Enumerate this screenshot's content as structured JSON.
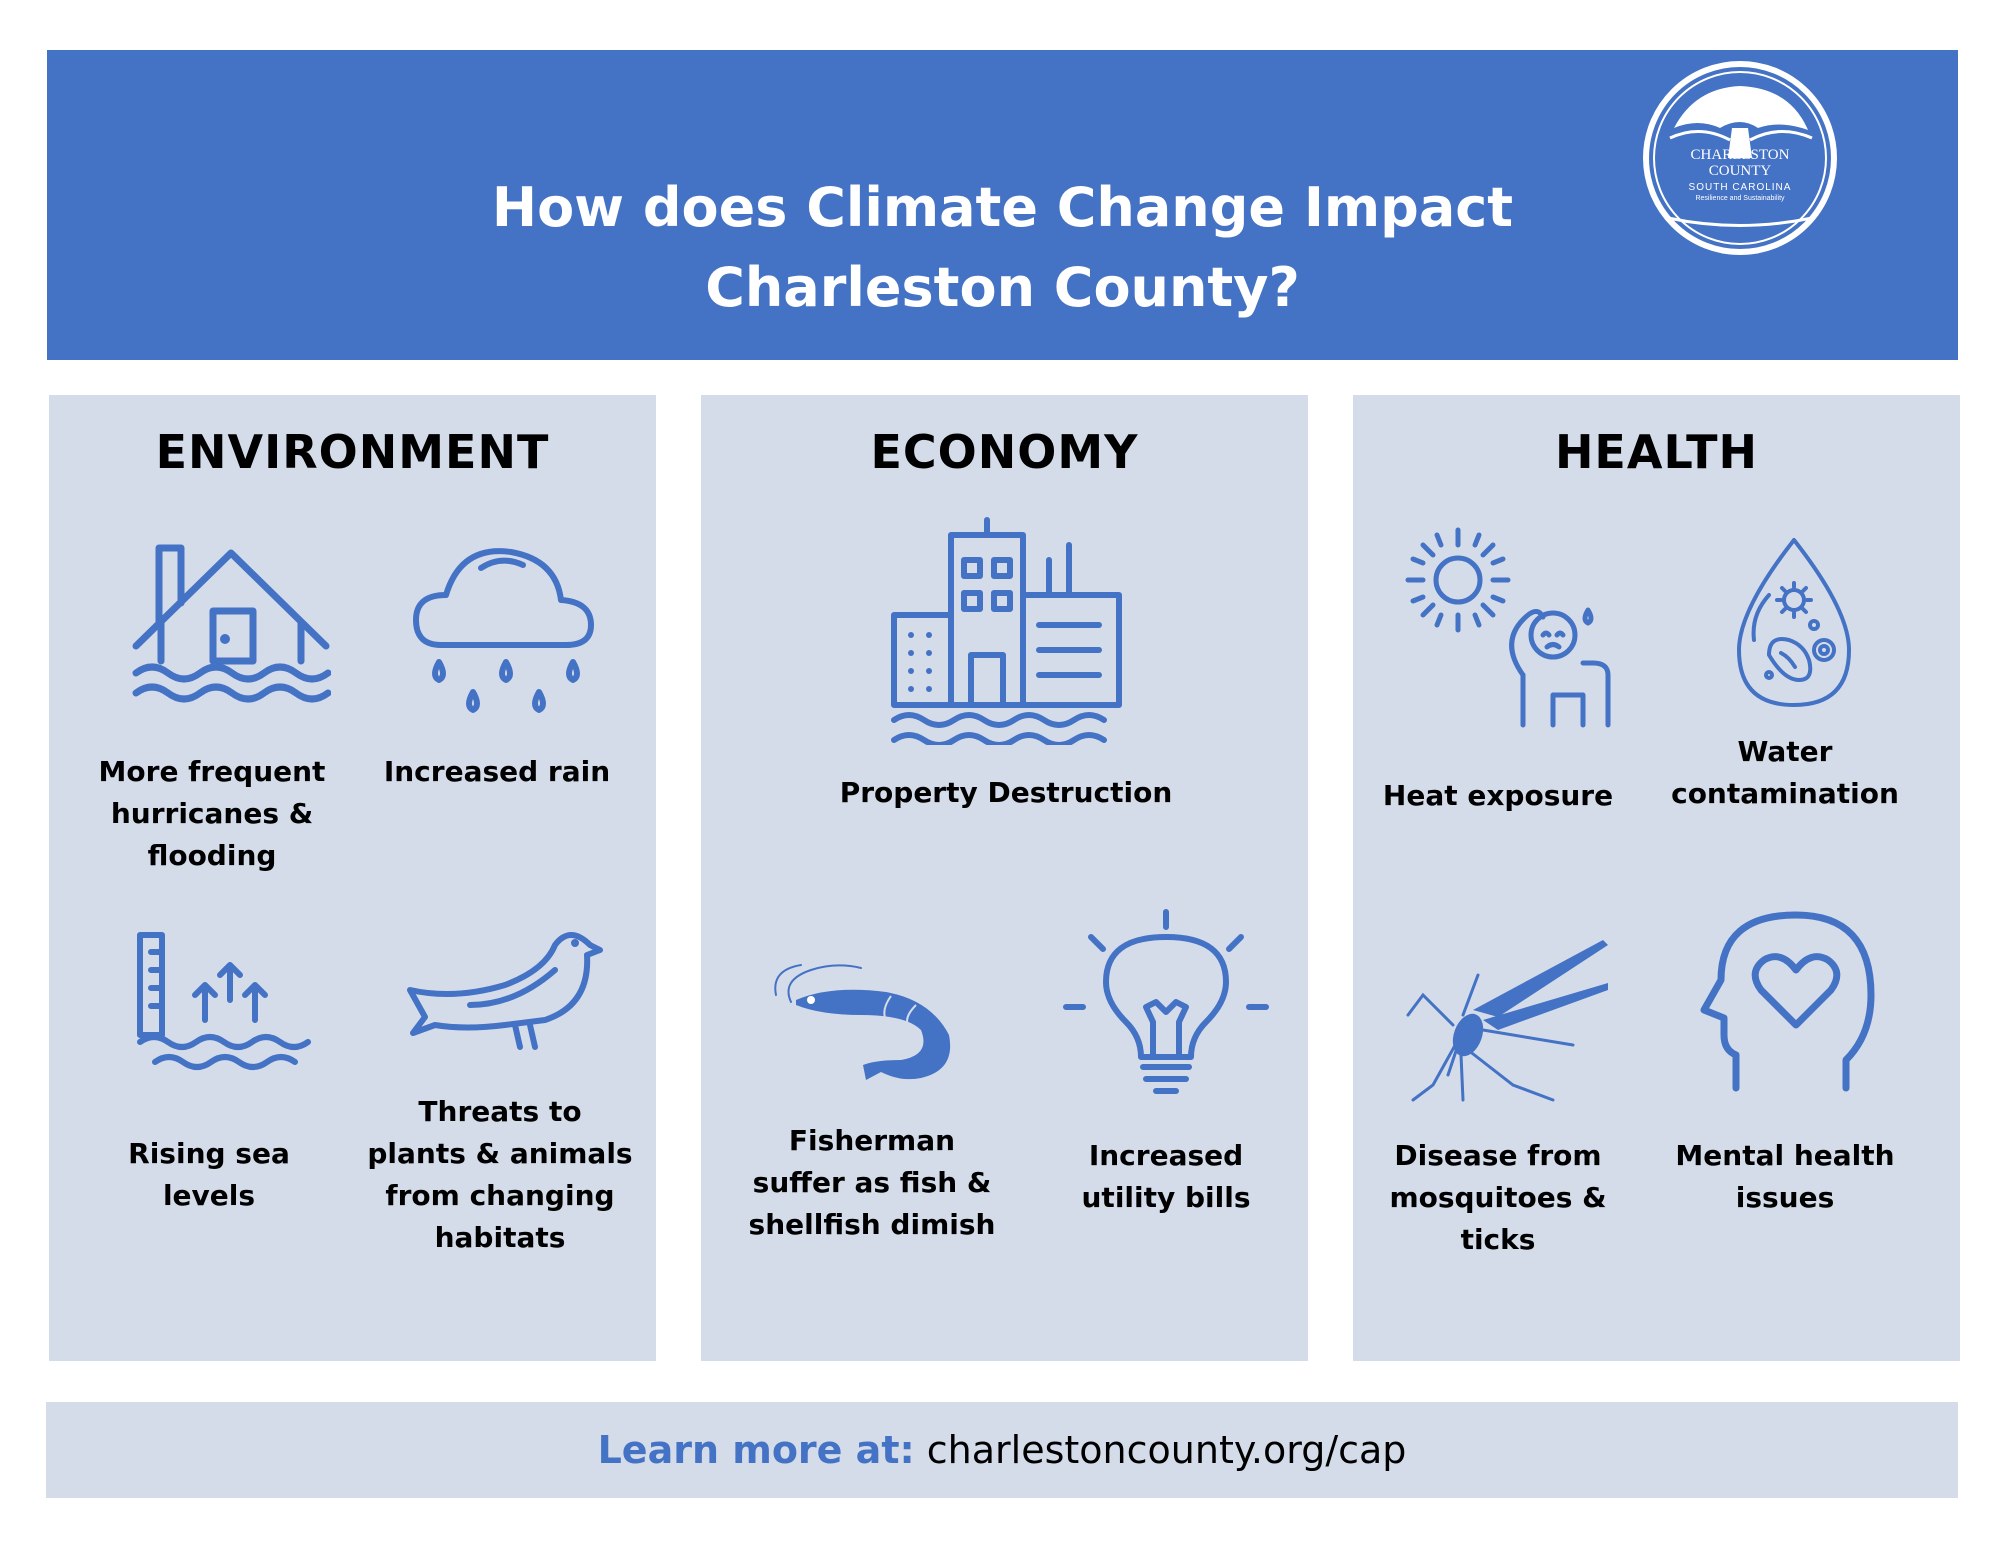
{
  "header": {
    "title_line1": "How does Climate Change Impact",
    "title_line2": "Charleston County?",
    "logo": {
      "line1": "CHARLESTON",
      "line2": "COUNTY",
      "line3": "SOUTH CAROLINA",
      "line4": "Resilience and Sustainability",
      "icon": "oak-tree-seal-icon"
    }
  },
  "sections": {
    "environment": {
      "title": "ENVIRONMENT",
      "items": [
        {
          "label": "More frequent hurricanes & flooding",
          "icon": "flooded-house-icon"
        },
        {
          "label": "Increased rain",
          "icon": "rain-cloud-icon"
        },
        {
          "label": "Rising sea levels",
          "icon": "rising-water-gauge-icon"
        },
        {
          "label": "Threats to plants & animals from changing habitats",
          "icon": "bird-icon"
        }
      ]
    },
    "economy": {
      "title": "ECONOMY",
      "items": [
        {
          "label": "Property Destruction",
          "icon": "flooded-buildings-icon"
        },
        {
          "label": "Fisherman suffer as fish & shellfish dimish",
          "icon": "shrimp-icon"
        },
        {
          "label": "Increased utility bills",
          "icon": "lightbulb-icon"
        }
      ]
    },
    "health": {
      "title": "HEALTH",
      "items": [
        {
          "label": "Heat exposure",
          "icon": "sun-sweating-person-icon"
        },
        {
          "label": "Water contamination",
          "icon": "contaminated-water-drop-icon"
        },
        {
          "label": "Disease from mosquitoes & ticks",
          "icon": "mosquito-icon"
        },
        {
          "label": "Mental health issues",
          "icon": "head-heart-icon"
        }
      ]
    }
  },
  "footer": {
    "label": "Learn more at:",
    "url": "charlestoncounty.org/cap"
  },
  "colors": {
    "brand_blue": "#4472c4",
    "panel_bg": "#d4dcea"
  }
}
